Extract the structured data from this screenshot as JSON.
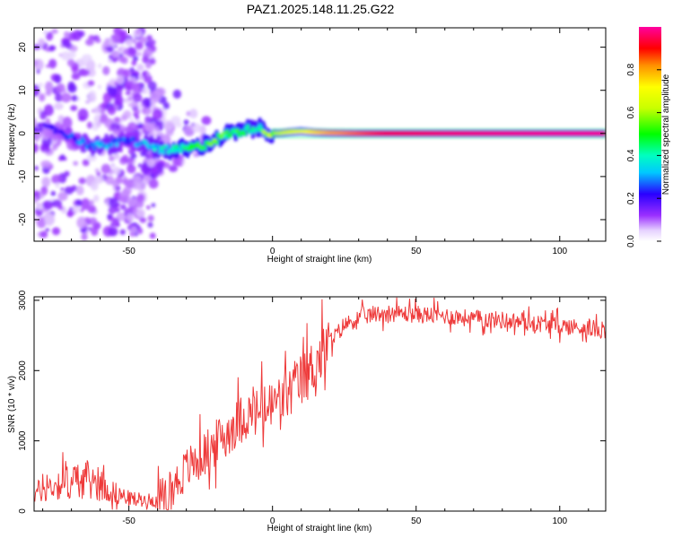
{
  "title": "PAZ1.2025.148.11.25.G22",
  "chart_data": [
    {
      "type": "heatmap",
      "xlabel": "Height of straight line (km)",
      "ylabel": "Frequency (Hz)",
      "xlim": [
        -83,
        116
      ],
      "ylim": [
        -25,
        24.5
      ],
      "xticks": [
        -50,
        0,
        50,
        100
      ],
      "xtick_labels": [
        "-50",
        "0",
        "50",
        "100"
      ],
      "yticks": [
        -20,
        -10,
        0,
        10,
        20
      ],
      "ytick_labels": [
        "-20",
        "-10",
        "0",
        "10",
        "20"
      ],
      "colorbar": {
        "label": "Normalized spectral amplitude",
        "range": [
          0,
          1
        ],
        "ticks": [
          0.0,
          0.2,
          0.4,
          0.6,
          0.8
        ],
        "tick_labels": [
          "0.0",
          "0.2",
          "0.4",
          "0.6",
          "0.8"
        ],
        "colormap": "rainbow"
      },
      "ridge": {
        "heights_km": [
          -83,
          -75,
          -68,
          -62,
          -56,
          -50,
          -45,
          -40,
          -35,
          -30,
          -25,
          -20,
          -15,
          -10,
          -6,
          -2,
          2,
          6,
          10,
          15,
          20,
          30,
          40,
          60,
          80,
          100,
          116
        ],
        "frequencies_hz": [
          1.5,
          0.8,
          -1.5,
          -3.0,
          -2.5,
          -1.5,
          -2.5,
          -3.5,
          -4.0,
          -3.5,
          -3.0,
          -1.5,
          0.0,
          0.5,
          1.5,
          0.2,
          0.0,
          0.3,
          0.5,
          0.2,
          0.1,
          0.0,
          0.0,
          0.0,
          0.0,
          0.0,
          0.0
        ],
        "amplitudes": [
          0.15,
          0.2,
          0.25,
          0.3,
          0.3,
          0.25,
          0.3,
          0.35,
          0.4,
          0.45,
          0.5,
          0.5,
          0.45,
          0.45,
          0.4,
          0.55,
          0.6,
          0.65,
          0.7,
          0.75,
          0.8,
          0.85,
          0.9,
          0.95,
          0.97,
          0.98,
          0.98
        ]
      }
    },
    {
      "type": "line",
      "xlabel": "Height of straight line (km)",
      "ylabel": "SNR (10 * v/v)",
      "xlim": [
        -83,
        116
      ],
      "ylim": [
        0,
        3050
      ],
      "xticks": [
        -50,
        0,
        50,
        100
      ],
      "xtick_labels": [
        "-50",
        "0",
        "50",
        "100"
      ],
      "yticks": [
        0,
        1000,
        2000,
        3000
      ],
      "ytick_labels": [
        "0",
        "1000",
        "2000",
        "3000"
      ],
      "series": [
        {
          "color": "#ee3a3a",
          "x": [
            -83,
            -80,
            -75,
            -70,
            -65,
            -60,
            -55,
            -50,
            -45,
            -40,
            -37,
            -35,
            -32,
            -30,
            -25,
            -20,
            -15,
            -10,
            -5,
            0,
            5,
            10,
            15,
            20,
            25,
            30,
            35,
            40,
            50,
            60,
            70,
            80,
            90,
            100,
            110,
            116
          ],
          "y": [
            250,
            300,
            380,
            420,
            450,
            380,
            260,
            180,
            160,
            150,
            200,
            320,
            480,
            600,
            760,
            950,
            1150,
            1350,
            1400,
            1500,
            1650,
            1850,
            2100,
            2400,
            2650,
            2750,
            2800,
            2820,
            2800,
            2780,
            2740,
            2720,
            2680,
            2640,
            2600,
            2580
          ]
        }
      ]
    }
  ]
}
